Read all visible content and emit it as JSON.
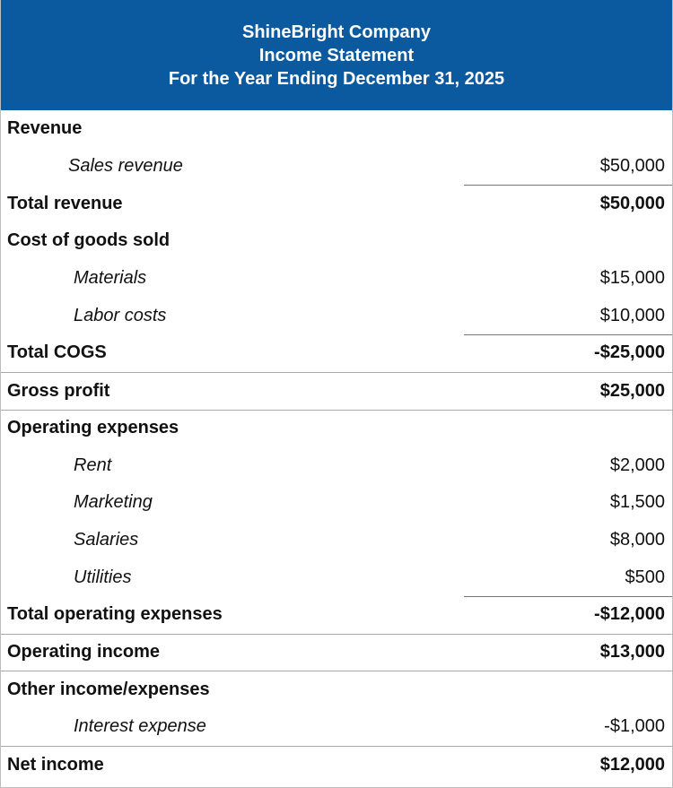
{
  "header": {
    "company": "ShineBright Company",
    "statement": "Income Statement",
    "period": "For the Year Ending December 31, 2025"
  },
  "rows": [
    {
      "type": "section",
      "label": "Revenue",
      "amount": ""
    },
    {
      "type": "item",
      "label": "Sales revenue",
      "amount": "$50,000"
    },
    {
      "type": "total",
      "label": "Total revenue",
      "amount": "$50,000"
    },
    {
      "type": "section",
      "label": "Cost of goods sold",
      "amount": ""
    },
    {
      "type": "item",
      "label": "Materials",
      "amount": "$15,000"
    },
    {
      "type": "item",
      "label": "Labor costs",
      "amount": "$10,000"
    },
    {
      "type": "total",
      "label": "Total COGS",
      "amount": "-$25,000"
    },
    {
      "type": "total",
      "label": "Gross profit",
      "amount": "$25,000"
    },
    {
      "type": "section",
      "label": "Operating expenses",
      "amount": ""
    },
    {
      "type": "item",
      "label": "Rent",
      "amount": "$2,000"
    },
    {
      "type": "item",
      "label": "Marketing",
      "amount": "$1,500"
    },
    {
      "type": "item",
      "label": "Salaries",
      "amount": "$8,000"
    },
    {
      "type": "item",
      "label": "Utilities",
      "amount": "$500"
    },
    {
      "type": "total",
      "label": "Total operating expenses",
      "amount": "-$12,000"
    },
    {
      "type": "total",
      "label": "Operating income",
      "amount": "$13,000"
    },
    {
      "type": "section",
      "label": "Other income/expenses",
      "amount": ""
    },
    {
      "type": "item",
      "label": "Interest expense",
      "amount": "-$1,000"
    },
    {
      "type": "total",
      "label": "Net income",
      "amount": "$12,000"
    }
  ]
}
